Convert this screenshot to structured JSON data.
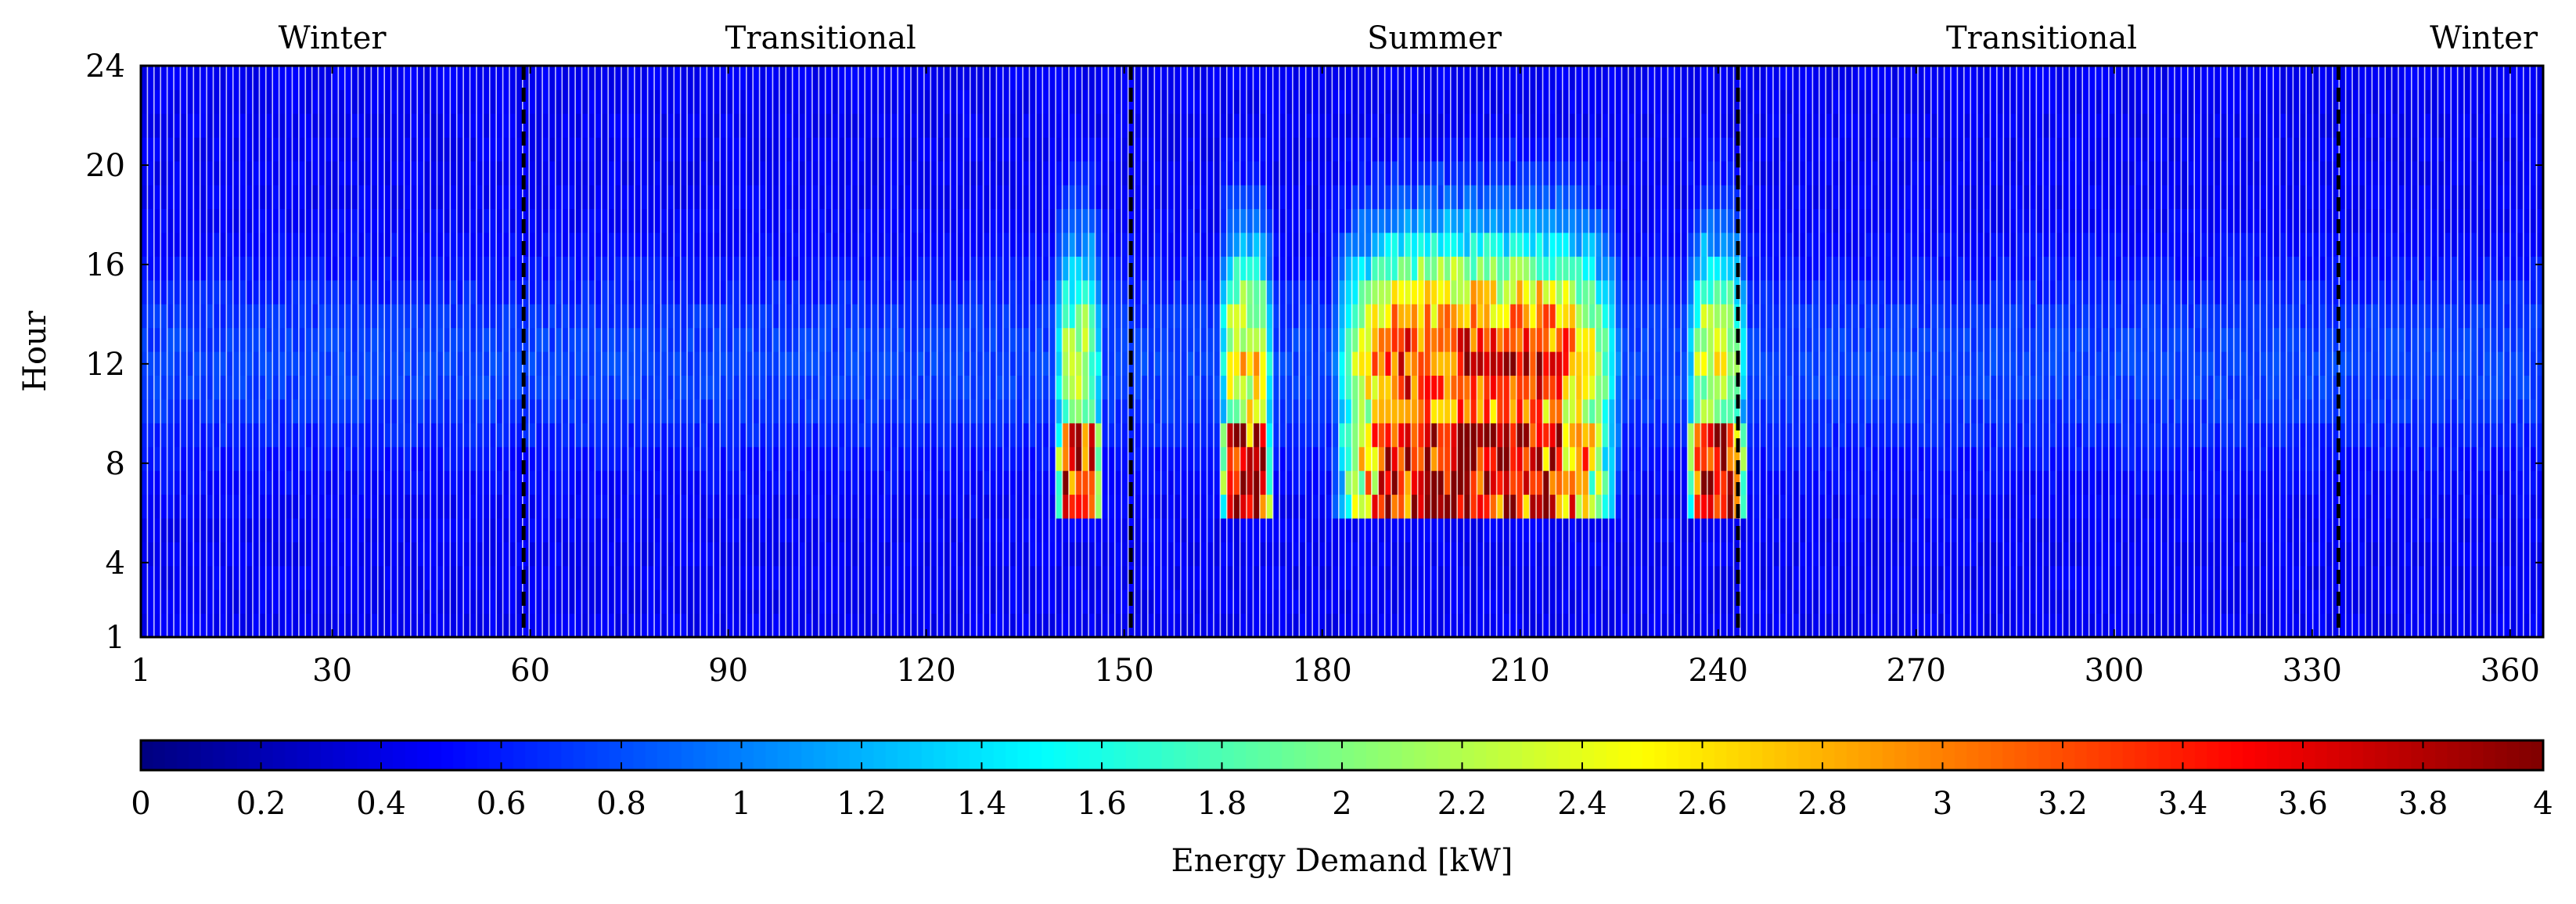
{
  "chart_data": {
    "type": "heatmap",
    "title": "",
    "xlabel": "",
    "ylabel": "Hour",
    "x_range": [
      1,
      365
    ],
    "y_range": [
      1,
      24
    ],
    "x_ticks": [
      1,
      30,
      60,
      90,
      120,
      150,
      180,
      210,
      240,
      270,
      300,
      330,
      360
    ],
    "y_ticks": [
      1,
      4,
      8,
      12,
      16,
      20,
      24
    ],
    "season_labels": [
      {
        "label": "Winter",
        "center_day": 30
      },
      {
        "label": "Transitional",
        "center_day": 104
      },
      {
        "label": "Summer",
        "center_day": 197
      },
      {
        "label": "Transitional",
        "center_day": 289
      },
      {
        "label": "Winter",
        "center_day": 356
      }
    ],
    "season_boundaries": [
      59,
      151,
      243,
      334
    ],
    "colorbar": {
      "label": "Energy Demand [kW]",
      "range": [
        0,
        4
      ],
      "ticks": [
        0,
        0.2,
        0.4,
        0.6,
        0.8,
        1,
        1.2,
        1.4,
        1.6,
        1.8,
        2,
        2.2,
        2.4,
        2.6,
        2.8,
        3,
        3.2,
        3.4,
        3.6,
        3.8,
        4
      ],
      "tick_labels": [
        "0",
        "0.2",
        "0.4",
        "0.6",
        "0.8",
        "1",
        "1.2",
        "1.4",
        "1.6",
        "1.8",
        "2",
        "2.2",
        "2.4",
        "2.6",
        "2.8",
        "3",
        "3.2",
        "3.4",
        "3.6",
        "3.8",
        "4"
      ],
      "colormap": "jet"
    },
    "demand_model": {
      "base_kw": 0.45,
      "midday_peak_kw": 0.3,
      "peak_hour": 12,
      "summer_events": [
        {
          "start_day": 140,
          "end_day": 146,
          "intensity_kw": 1.4
        },
        {
          "start_day": 165,
          "end_day": 172,
          "intensity_kw": 1.9
        },
        {
          "start_day": 182,
          "end_day": 225,
          "intensity_kw": 2.7
        },
        {
          "start_day": 236,
          "end_day": 244,
          "intensity_kw": 1.6
        }
      ],
      "morning_peak_kw": 3.7,
      "morning_peak_hours": [
        6,
        9
      ]
    }
  }
}
